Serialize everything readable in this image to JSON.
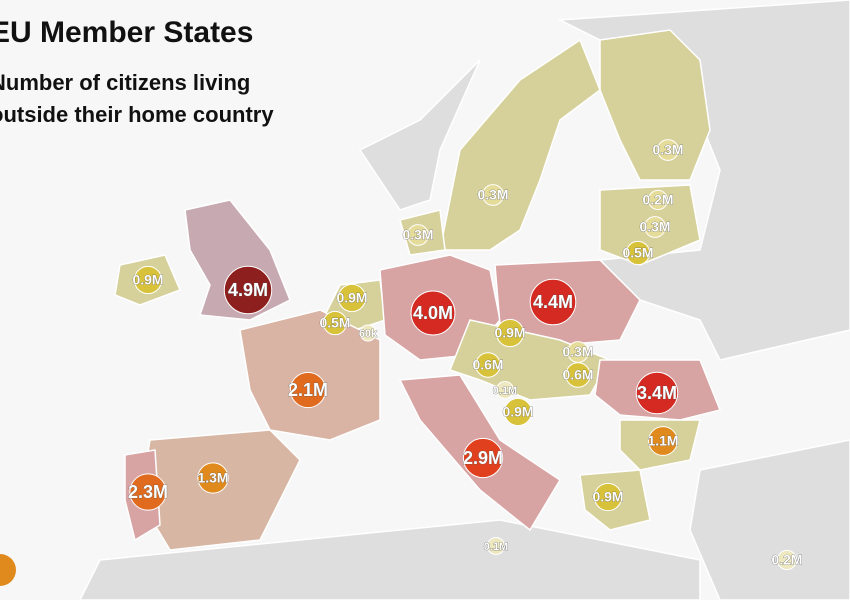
{
  "header": {
    "title": "EU Member States",
    "subtitle": [
      "Number of citizens living",
      "outside their home country"
    ]
  },
  "bubbles": [
    {
      "label": "4.9M",
      "value": 4.9,
      "color": "#8e1f1f"
    },
    {
      "label": "0.9M",
      "value": 0.9,
      "color": "#d8c23a"
    },
    {
      "label": "0.3M",
      "value": 0.3,
      "color": "#e6dc9a"
    },
    {
      "label": "0.3M",
      "value": 0.3,
      "color": "#e6dc9a"
    },
    {
      "label": "0.3M",
      "value": 0.3,
      "color": "#e6dc9a"
    },
    {
      "label": "0.2M",
      "value": 0.2,
      "color": "#e6dc9a"
    },
    {
      "label": "0.3M",
      "value": 0.3,
      "color": "#e6dc9a"
    },
    {
      "label": "0.5M",
      "value": 0.5,
      "color": "#d8c23a"
    },
    {
      "label": "0.9M",
      "value": 0.9,
      "color": "#d8c23a"
    },
    {
      "label": "0.5M",
      "value": 0.5,
      "color": "#d8c23a"
    },
    {
      "label": "60k",
      "value": 0.06,
      "color": "#eee8c0"
    },
    {
      "label": "4.0M",
      "value": 4.0,
      "color": "#d42a22"
    },
    {
      "label": "4.4M",
      "value": 4.4,
      "color": "#d42a22"
    },
    {
      "label": "0.9M",
      "value": 0.9,
      "color": "#d8c23a"
    },
    {
      "label": "0.3M",
      "value": 0.3,
      "color": "#e6dc9a"
    },
    {
      "label": "0.6M",
      "value": 0.6,
      "color": "#d8c23a"
    },
    {
      "label": "0.6M",
      "value": 0.6,
      "color": "#d8c23a"
    },
    {
      "label": "0.1M",
      "value": 0.1,
      "color": "#eee8c0"
    },
    {
      "label": "0.9M",
      "value": 0.9,
      "color": "#d8c23a"
    },
    {
      "label": "3.4M",
      "value": 3.4,
      "color": "#d42a22"
    },
    {
      "label": "1.1M",
      "value": 1.1,
      "color": "#e08a1e"
    },
    {
      "label": "2.1M",
      "value": 2.1,
      "color": "#e06a1e"
    },
    {
      "label": "2.9M",
      "value": 2.9,
      "color": "#e0401e"
    },
    {
      "label": "1.3M",
      "value": 1.3,
      "color": "#e08a1e"
    },
    {
      "label": "2.3M",
      "value": 2.3,
      "color": "#e06a1e"
    },
    {
      "label": "0.9M",
      "value": 0.9,
      "color": "#d8c23a"
    },
    {
      "label": "0.1M",
      "value": 0.1,
      "color": "#eee8c0"
    },
    {
      "label": "0.2M",
      "value": 0.2,
      "color": "#eee8c0"
    }
  ]
}
